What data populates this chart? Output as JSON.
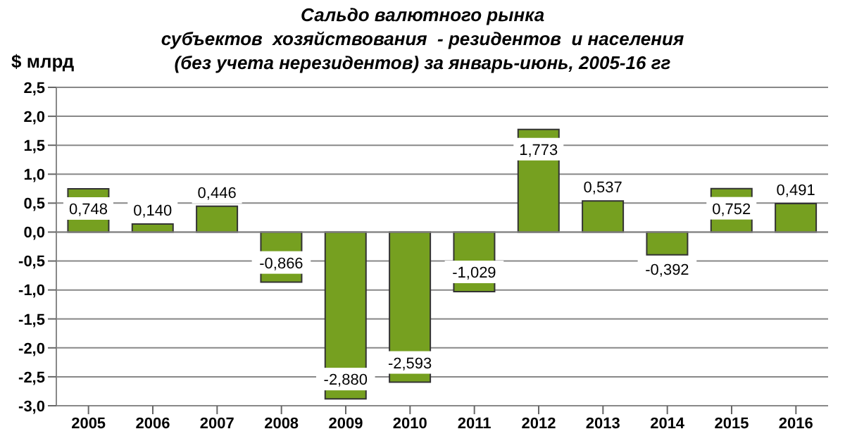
{
  "chart_data": {
    "type": "bar",
    "title": "Сальдо валютного рынка\nсубъектов  хозяйствования  - резидентов  и населения\n(без учета нерезидентов) за январь-июнь, 2005-16 гг",
    "ylabel": "$ млрд",
    "categories": [
      "2005",
      "2006",
      "2007",
      "2008",
      "2009",
      "2010",
      "2011",
      "2012",
      "2013",
      "2014",
      "2015",
      "2016"
    ],
    "values": [
      0.748,
      0.14,
      0.446,
      -0.866,
      -2.88,
      -2.593,
      -1.029,
      1.773,
      0.537,
      -0.392,
      0.752,
      0.491
    ],
    "value_labels": [
      "0,748",
      "0,140",
      "0,446",
      "-0,866",
      "-2,880",
      "-2,593",
      "-1,029",
      "1,773",
      "0,537",
      "-0,392",
      "0,752",
      "0,491"
    ],
    "color": "#76a020",
    "ylim": [
      -3,
      2.5
    ],
    "yticks": [
      {
        "value": -3,
        "label": "-3,0"
      },
      {
        "value": -2.5,
        "label": "-2,5"
      },
      {
        "value": -2,
        "label": "-2,0"
      },
      {
        "value": -1.5,
        "label": "-1,5"
      },
      {
        "value": -1,
        "label": "-1,0"
      },
      {
        "value": -0.5,
        "label": "-0,5"
      },
      {
        "value": 0,
        "label": "0,0"
      },
      {
        "value": 0.5,
        "label": "0,5"
      },
      {
        "value": 1,
        "label": "1,0"
      },
      {
        "value": 1.5,
        "label": "1,5"
      },
      {
        "value": 2,
        "label": "2,0"
      },
      {
        "value": 2.5,
        "label": "2,5"
      }
    ],
    "grid": "y"
  }
}
